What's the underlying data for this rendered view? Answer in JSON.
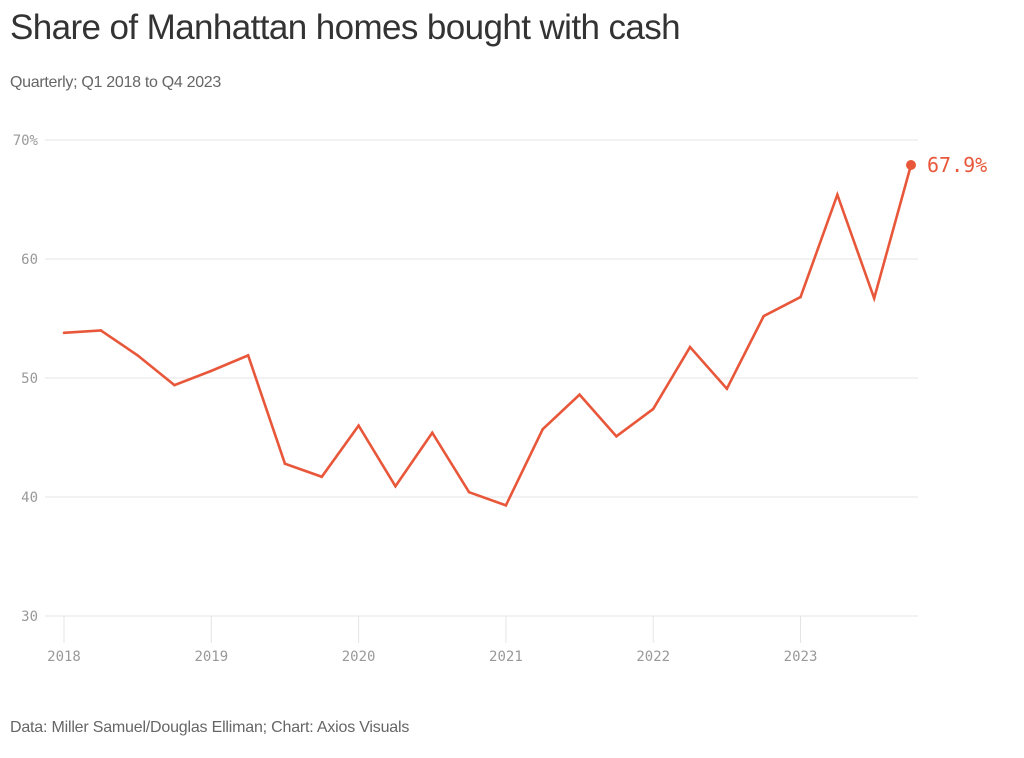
{
  "header": {
    "title": "Share of Manhattan homes bought with cash",
    "subtitle": "Quarterly; Q1 2018 to Q4 2023"
  },
  "footer": {
    "source": "Data: Miller Samuel/Douglas Elliman; Chart: Axios Visuals"
  },
  "colors": {
    "line": "#e8573a",
    "grid": "#e4e4e4",
    "tick_text": "#999999"
  },
  "chart_data": {
    "type": "line",
    "title": "Share of Manhattan homes bought with cash",
    "subtitle": "Quarterly; Q1 2018 to Q4 2023",
    "xlabel": "",
    "ylabel": "",
    "ylim": [
      30,
      70
    ],
    "y_ticks": [
      {
        "value": 70,
        "label": "70%"
      },
      {
        "value": 60,
        "label": "60"
      },
      {
        "value": 50,
        "label": "50"
      },
      {
        "value": 40,
        "label": "40"
      },
      {
        "value": 30,
        "label": "30"
      }
    ],
    "x_ticks": [
      {
        "value": 2018,
        "label": "2018"
      },
      {
        "value": 2019,
        "label": "2019"
      },
      {
        "value": 2020,
        "label": "2020"
      },
      {
        "value": 2021,
        "label": "2021"
      },
      {
        "value": 2022,
        "label": "2022"
      },
      {
        "value": 2023,
        "label": "2023"
      }
    ],
    "xlim": [
      2018,
      2023.75
    ],
    "grid": true,
    "legend": "none",
    "x": [
      "Q1 2018",
      "Q2 2018",
      "Q3 2018",
      "Q4 2018",
      "Q1 2019",
      "Q2 2019",
      "Q3 2019",
      "Q4 2019",
      "Q1 2020",
      "Q2 2020",
      "Q3 2020",
      "Q4 2020",
      "Q1 2021",
      "Q2 2021",
      "Q3 2021",
      "Q4 2021",
      "Q1 2022",
      "Q2 2022",
      "Q3 2022",
      "Q4 2022",
      "Q1 2023",
      "Q2 2023",
      "Q3 2023",
      "Q4 2023"
    ],
    "series": [
      {
        "name": "Cash share",
        "unit": "%",
        "values": [
          53.8,
          54.0,
          51.9,
          49.4,
          50.6,
          51.9,
          42.8,
          41.7,
          46.0,
          40.9,
          45.4,
          40.4,
          39.3,
          45.7,
          48.6,
          45.1,
          47.4,
          52.6,
          49.1,
          55.2,
          56.8,
          65.4,
          56.7,
          67.9
        ]
      }
    ],
    "annotations": [
      {
        "point": "Q4 2023",
        "value": 67.9,
        "label": "67.9%"
      }
    ]
  }
}
